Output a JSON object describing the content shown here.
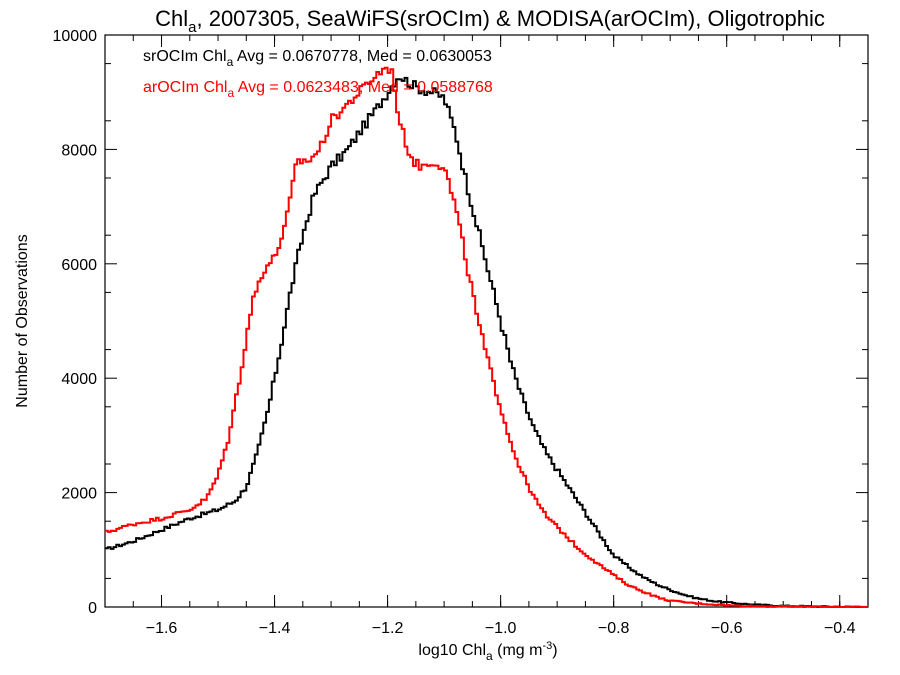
{
  "chart_data": {
    "type": "line",
    "title": {
      "main": "Chl",
      "sub": "a",
      "rest": ", 2007305, SeaWiFS(srOCIm) & MODISA(arOCIm), Oligotrophic"
    },
    "xlabel": {
      "main": "log10 Chl",
      "sub": "a",
      "rest": " (mg m",
      "sup": "-3",
      "tail": ")"
    },
    "ylabel": "Number of Observations",
    "xlim": [
      -1.7,
      -0.35
    ],
    "ylim": [
      0,
      10000
    ],
    "x_ticks": [
      -1.6,
      -1.4,
      -1.2,
      -1.0,
      -0.8,
      -0.6,
      -0.4
    ],
    "x_tick_labels": [
      "−1.6",
      "−1.4",
      "−1.2",
      "−1.0",
      "−0.8",
      "−0.6",
      "−0.4"
    ],
    "y_ticks": [
      0,
      2000,
      4000,
      6000,
      8000,
      10000
    ],
    "y_tick_labels": [
      "0",
      "2000",
      "4000",
      "6000",
      "8000",
      "10000"
    ],
    "grid": false,
    "legend_position": "top-left",
    "series": [
      {
        "name": "srOCIm",
        "color": "#000000",
        "label": {
          "pre": "srOCIm Chl",
          "sub": "a",
          "post": " Avg = 0.0670778, Med = 0.0630053"
        },
        "x": [
          -1.7,
          -1.65,
          -1.6,
          -1.55,
          -1.5,
          -1.47,
          -1.45,
          -1.43,
          -1.41,
          -1.39,
          -1.37,
          -1.35,
          -1.33,
          -1.3,
          -1.27,
          -1.25,
          -1.22,
          -1.2,
          -1.18,
          -1.16,
          -1.14,
          -1.12,
          -1.1,
          -1.08,
          -1.06,
          -1.04,
          -1.02,
          -1.0,
          -0.98,
          -0.96,
          -0.94,
          -0.92,
          -0.9,
          -0.88,
          -0.86,
          -0.84,
          -0.82,
          -0.8,
          -0.78,
          -0.76,
          -0.74,
          -0.72,
          -0.7,
          -0.68,
          -0.66,
          -0.64,
          -0.62,
          -0.6,
          -0.55,
          -0.5,
          -0.45,
          -0.4,
          -0.35
        ],
        "y": [
          1000,
          1150,
          1350,
          1550,
          1700,
          1850,
          2100,
          2700,
          3500,
          4500,
          5600,
          6500,
          7200,
          7700,
          8000,
          8300,
          8700,
          9000,
          9300,
          9150,
          9050,
          9000,
          8900,
          8300,
          7400,
          6600,
          5800,
          5000,
          4200,
          3600,
          3100,
          2700,
          2400,
          2100,
          1800,
          1500,
          1200,
          900,
          750,
          600,
          480,
          380,
          300,
          230,
          170,
          130,
          100,
          80,
          40,
          20,
          10,
          5,
          0
        ]
      },
      {
        "name": "arOCIm",
        "color": "#ff0000",
        "label": {
          "pre": "arOCIm Chl",
          "sub": "a",
          "post": " Avg = 0.0623483, Med = 0.0588768"
        },
        "x": [
          -1.7,
          -1.65,
          -1.6,
          -1.55,
          -1.52,
          -1.5,
          -1.48,
          -1.46,
          -1.44,
          -1.42,
          -1.4,
          -1.38,
          -1.36,
          -1.34,
          -1.32,
          -1.3,
          -1.28,
          -1.26,
          -1.24,
          -1.22,
          -1.2,
          -1.19,
          -1.18,
          -1.16,
          -1.15,
          -1.14,
          -1.12,
          -1.1,
          -1.08,
          -1.06,
          -1.04,
          -1.02,
          -1.0,
          -0.98,
          -0.96,
          -0.94,
          -0.92,
          -0.9,
          -0.88,
          -0.86,
          -0.84,
          -0.82,
          -0.8,
          -0.78,
          -0.76,
          -0.74,
          -0.72,
          -0.7,
          -0.65,
          -0.6,
          -0.55,
          -0.5,
          -0.45,
          -0.4,
          -0.35
        ],
        "y": [
          1300,
          1450,
          1550,
          1700,
          1900,
          2300,
          3000,
          4100,
          5300,
          5900,
          6100,
          6700,
          7800,
          7800,
          8000,
          8500,
          8700,
          8900,
          9100,
          9300,
          9450,
          9300,
          8500,
          7900,
          7750,
          7700,
          7800,
          7700,
          7000,
          6000,
          5000,
          4200,
          3500,
          2800,
          2300,
          1900,
          1600,
          1400,
          1200,
          1000,
          850,
          700,
          560,
          420,
          320,
          240,
          160,
          110,
          60,
          30,
          15,
          8,
          3,
          0,
          0
        ]
      }
    ]
  }
}
